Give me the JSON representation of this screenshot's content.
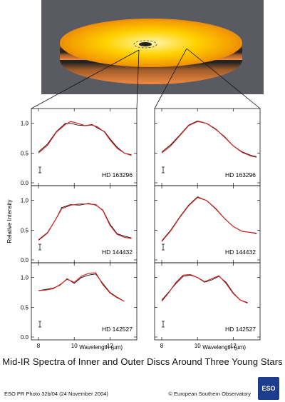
{
  "chart_data": {
    "type": "line",
    "xlabel": "Wavelength (µm)",
    "ylabel": "Relative Intensity",
    "xlim": [
      7.6,
      13.5
    ],
    "ylim": [
      0.0,
      1.2
    ],
    "x_ticks": [
      8,
      10,
      12
    ],
    "y_ticks": [
      0.0,
      0.5,
      1.0
    ],
    "series_colors": {
      "observed": "#111111",
      "model": "#d42020"
    },
    "panels": [
      {
        "column": "inner",
        "star": "HD 163296",
        "observed": {
          "x": [
            8.0,
            8.5,
            9.0,
            9.5,
            9.8,
            10.2,
            10.6,
            11.0,
            11.3,
            11.7,
            12.0,
            12.4,
            12.8,
            13.2
          ],
          "y": [
            0.52,
            0.65,
            0.86,
            1.0,
            1.0,
            0.97,
            0.96,
            0.98,
            0.92,
            0.86,
            0.74,
            0.6,
            0.5,
            0.47
          ]
        },
        "model": {
          "x": [
            8.0,
            8.5,
            9.0,
            9.5,
            9.8,
            10.2,
            10.6,
            11.0,
            11.3,
            11.7,
            12.0,
            12.4,
            12.8,
            13.2
          ],
          "y": [
            0.5,
            0.63,
            0.85,
            0.98,
            1.03,
            1.0,
            0.96,
            0.97,
            0.94,
            0.85,
            0.72,
            0.58,
            0.5,
            0.46
          ]
        }
      },
      {
        "column": "outer",
        "star": "HD 163296",
        "observed": {
          "x": [
            8.0,
            8.5,
            9.0,
            9.5,
            10.0,
            10.5,
            11.0,
            11.5,
            12.0,
            12.5,
            13.0,
            13.3
          ],
          "y": [
            0.52,
            0.64,
            0.8,
            0.97,
            1.04,
            1.0,
            0.9,
            0.78,
            0.62,
            0.52,
            0.46,
            0.44
          ]
        },
        "model": {
          "x": [
            8.0,
            8.5,
            9.0,
            9.5,
            10.0,
            10.5,
            11.0,
            11.5,
            12.0,
            12.5,
            13.0,
            13.3
          ],
          "y": [
            0.5,
            0.62,
            0.79,
            0.96,
            1.03,
            1.0,
            0.91,
            0.77,
            0.62,
            0.51,
            0.45,
            0.43
          ]
        }
      },
      {
        "column": "inner",
        "star": "HD 144432",
        "observed": {
          "x": [
            8.0,
            8.5,
            9.0,
            9.3,
            9.8,
            10.3,
            10.8,
            11.2,
            11.6,
            12.0,
            12.4,
            12.8,
            13.2
          ],
          "y": [
            0.34,
            0.46,
            0.7,
            0.88,
            0.93,
            0.92,
            0.95,
            0.92,
            0.84,
            0.6,
            0.44,
            0.4,
            0.37
          ]
        },
        "model": {
          "x": [
            8.0,
            8.5,
            9.0,
            9.3,
            9.8,
            10.3,
            10.8,
            11.2,
            11.6,
            12.0,
            12.4,
            12.8,
            13.2
          ],
          "y": [
            0.33,
            0.45,
            0.7,
            0.86,
            0.92,
            0.94,
            0.94,
            0.93,
            0.83,
            0.58,
            0.43,
            0.38,
            0.36
          ]
        }
      },
      {
        "column": "outer",
        "star": "HD 144432",
        "observed": {
          "x": [
            8.0,
            8.5,
            9.0,
            9.5,
            10.0,
            10.5,
            11.0,
            11.5,
            12.0,
            12.5,
            13.0,
            13.3
          ],
          "y": [
            0.32,
            0.5,
            0.72,
            0.92,
            1.06,
            1.0,
            0.86,
            0.7,
            0.56,
            0.48,
            0.46,
            0.45
          ]
        },
        "model": {
          "x": [
            8.0,
            8.5,
            9.0,
            9.5,
            10.0,
            10.5,
            11.0,
            11.5,
            12.0,
            12.5,
            13.0,
            13.3
          ],
          "y": [
            0.31,
            0.49,
            0.71,
            0.91,
            1.05,
            1.0,
            0.87,
            0.7,
            0.56,
            0.48,
            0.46,
            0.44
          ]
        }
      },
      {
        "column": "inner",
        "star": "HD 142527",
        "observed": {
          "x": [
            8.0,
            8.4,
            8.8,
            9.2,
            9.6,
            10.0,
            10.4,
            10.8,
            11.2,
            11.6,
            12.0,
            12.4,
            12.8
          ],
          "y": [
            0.78,
            0.8,
            0.82,
            0.87,
            0.98,
            0.9,
            1.0,
            1.04,
            1.06,
            0.9,
            0.75,
            0.67,
            0.6
          ]
        },
        "model": {
          "x": [
            8.0,
            8.4,
            8.8,
            9.2,
            9.6,
            10.0,
            10.4,
            10.8,
            11.2,
            11.6,
            12.0,
            12.4,
            12.8
          ],
          "y": [
            0.78,
            0.79,
            0.81,
            0.88,
            0.97,
            0.92,
            1.02,
            1.07,
            1.08,
            0.88,
            0.74,
            0.66,
            0.6
          ]
        }
      },
      {
        "column": "outer",
        "star": "HD 142527",
        "observed": {
          "x": [
            8.0,
            8.4,
            8.8,
            9.2,
            9.6,
            10.0,
            10.4,
            10.8,
            11.2,
            11.6,
            12.0,
            12.4,
            12.8
          ],
          "y": [
            0.62,
            0.76,
            0.9,
            1.02,
            1.04,
            1.0,
            0.92,
            0.96,
            1.02,
            0.92,
            0.74,
            0.62,
            0.58
          ]
        },
        "model": {
          "x": [
            8.0,
            8.4,
            8.8,
            9.2,
            9.6,
            10.0,
            10.4,
            10.8,
            11.2,
            11.6,
            12.0,
            12.4,
            12.8
          ],
          "y": [
            0.6,
            0.75,
            0.92,
            1.04,
            1.05,
            1.0,
            0.93,
            0.98,
            1.03,
            0.9,
            0.73,
            0.62,
            0.57
          ]
        }
      }
    ]
  },
  "caption": "Mid-IR  Spectra of Inner and Outer Discs Around Three Young Stars",
  "footer": {
    "left": "ESO PR Photo 32b/04 (24 November 2004)",
    "right": "© European Southern Observatory",
    "logo": "ESO"
  }
}
